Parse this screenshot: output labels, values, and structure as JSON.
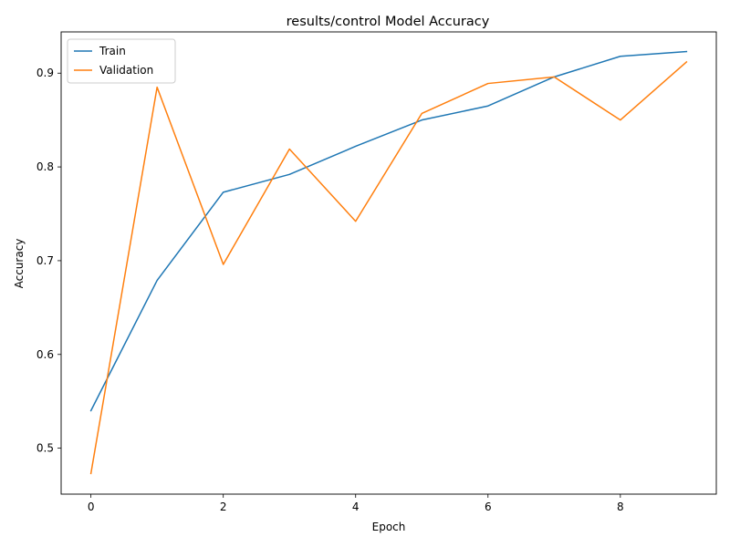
{
  "chart_data": {
    "type": "line",
    "title": "results/control Model Accuracy",
    "xlabel": "Epoch",
    "ylabel": "Accuracy",
    "x": [
      0,
      1,
      2,
      3,
      4,
      5,
      6,
      7,
      8,
      9
    ],
    "xlim": [
      -0.45,
      9.45
    ],
    "ylim": [
      0.451,
      0.944
    ],
    "xticks": [
      0,
      2,
      4,
      6,
      8
    ],
    "yticks": [
      0.5,
      0.6,
      0.7,
      0.8,
      0.9
    ],
    "grid": false,
    "legend_position": "top-left",
    "series": [
      {
        "name": "Train",
        "color": "#1f77b4",
        "values": [
          0.54,
          0.679,
          0.773,
          0.792,
          0.822,
          0.85,
          0.865,
          0.896,
          0.918,
          0.923
        ]
      },
      {
        "name": "Validation",
        "color": "#ff7f0e",
        "values": [
          0.473,
          0.885,
          0.696,
          0.819,
          0.742,
          0.857,
          0.889,
          0.896,
          0.85,
          0.912
        ]
      }
    ]
  }
}
